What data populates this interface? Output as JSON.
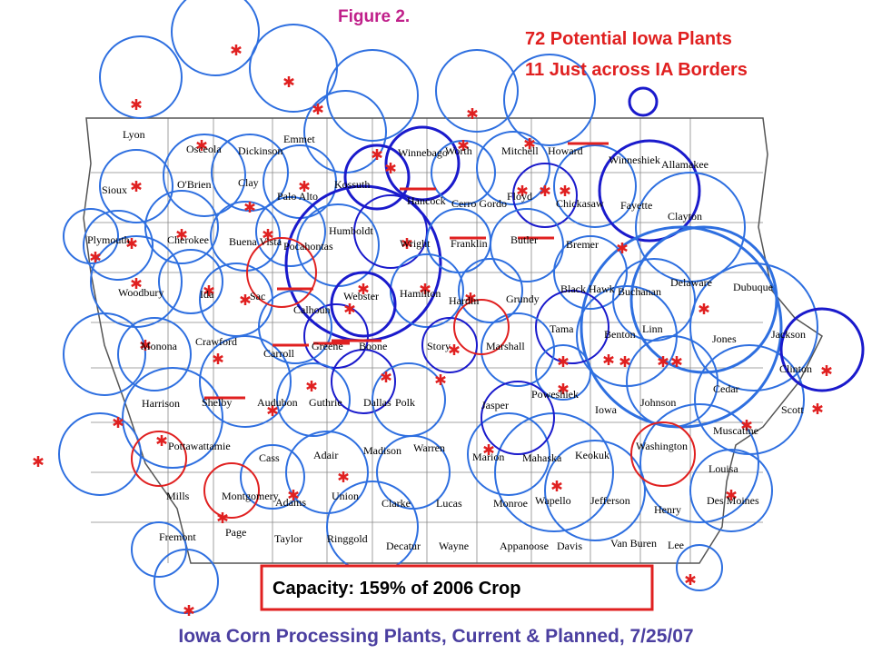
{
  "figure_label": "Figure 2.",
  "header": {
    "line1": "72 Potential Iowa Plants",
    "line2": "11 Just across IA Borders"
  },
  "capacity_box": "Capacity: 159% of 2006 Crop",
  "title": "Iowa Corn Processing Plants, Current & Planned, 7/25/07",
  "counties": [
    "Lyon",
    "Osceola",
    "Dickinson",
    "Emmet",
    "Winnebago",
    "Worth",
    "Mitchell",
    "Howard",
    "Winneshiek",
    "Allamakee",
    "Sioux",
    "O'Brien",
    "Clay",
    "Palo Alto",
    "Kossuth",
    "Hancock",
    "Cerro Gordo",
    "Floyd",
    "Chickasaw",
    "Fayette",
    "Clayton",
    "Plymouth",
    "Cherokee",
    "Buena Vista",
    "Pocahontas",
    "Humboldt",
    "Wright",
    "Franklin",
    "Butler",
    "Bremer",
    "Woodbury",
    "Ida",
    "Sac",
    "Calhoun",
    "Webster",
    "Hamilton",
    "Hardin",
    "Grundy",
    "Black Hawk",
    "Buchanan",
    "Delaware",
    "Dubuque",
    "Monona",
    "Crawford",
    "Carroll",
    "Greene",
    "Boone",
    "Story",
    "Marshall",
    "Tama",
    "Benton",
    "Linn",
    "Jones",
    "Jackson",
    "Harrison",
    "Shelby",
    "Audubon",
    "Guthrie",
    "Dallas",
    "Polk",
    "Jasper",
    "Poweshiek",
    "Iowa",
    "Johnson",
    "Cedar",
    "Clinton",
    "Scott",
    "Pottawattamie",
    "Cass",
    "Adair",
    "Madison",
    "Warren",
    "Marion",
    "Mahaska",
    "Keokuk",
    "Washington",
    "Muscatine",
    "Louisa",
    "Mills",
    "Montgomery",
    "Adams",
    "Union",
    "Clarke",
    "Lucas",
    "Monroe",
    "Wapello",
    "Jefferson",
    "Henry",
    "Des Moines",
    "Fremont",
    "Page",
    "Taylor",
    "Ringgold",
    "Decatur",
    "Wayne",
    "Appanoose",
    "Davis",
    "Van Buren",
    "Lee"
  ]
}
